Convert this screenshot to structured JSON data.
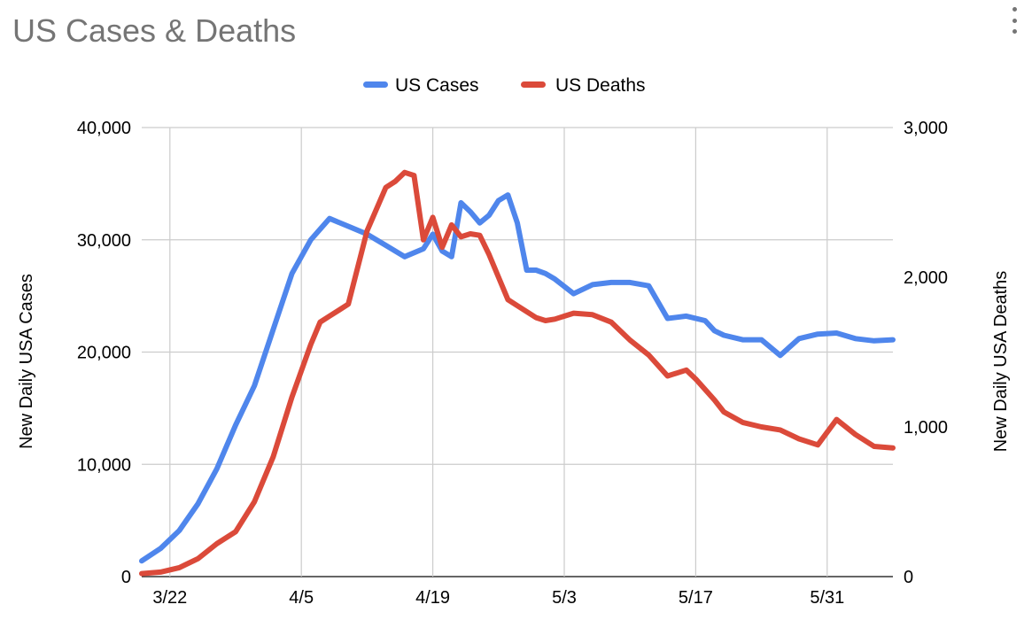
{
  "title": "US Cases & Deaths",
  "menu_icon": "more-vert-icon",
  "colors": {
    "cases": "#4f86ec",
    "deaths": "#db4a3a",
    "grid": "#cccccc",
    "axis_text": "#000000",
    "title": "#757575"
  },
  "chart_data": {
    "type": "line",
    "title": "US Cases & Deaths",
    "legend_position": "top",
    "grid": true,
    "x_label": "",
    "x_ticks": [
      "3/22",
      "4/5",
      "4/19",
      "5/3",
      "5/17",
      "5/31"
    ],
    "x_tick_days": [
      3,
      17,
      31,
      45,
      59,
      73
    ],
    "x_range_days": [
      0,
      80
    ],
    "y_left": {
      "label": "New Daily USA Cases",
      "ticks": [
        "0",
        "10,000",
        "20,000",
        "30,000",
        "40,000"
      ],
      "range": [
        0,
        40000
      ]
    },
    "y_right": {
      "label": "New Daily USA Deaths",
      "ticks": [
        "0",
        "1,000",
        "2,000",
        "3,000"
      ],
      "range": [
        0,
        3000
      ]
    },
    "series": [
      {
        "name": "US Cases",
        "axis": "left",
        "x_days": [
          0,
          2,
          4,
          6,
          8,
          10,
          12,
          14,
          16,
          18,
          20,
          22,
          24,
          26,
          28,
          30,
          31,
          32,
          33,
          34,
          35,
          36,
          37,
          38,
          39,
          40,
          41,
          42,
          43,
          44,
          46,
          48,
          50,
          52,
          54,
          56,
          58,
          60,
          61,
          62,
          64,
          66,
          68,
          70,
          72,
          74,
          76,
          78,
          80
        ],
        "values": [
          1400,
          2500,
          4100,
          6500,
          9600,
          13500,
          17000,
          22000,
          27000,
          30000,
          31900,
          31200,
          30500,
          29500,
          28500,
          29200,
          30500,
          29000,
          28500,
          33300,
          32500,
          31500,
          32200,
          33500,
          34000,
          31500,
          27300,
          27300,
          27000,
          26500,
          25200,
          26000,
          26200,
          26200,
          25900,
          23000,
          23200,
          22800,
          21900,
          21500,
          21100,
          21100,
          19700,
          21200,
          21600,
          21700,
          21200,
          21000,
          21100
        ]
      },
      {
        "name": "US Deaths",
        "axis": "right",
        "x_days": [
          0,
          2,
          4,
          6,
          8,
          10,
          12,
          14,
          16,
          18,
          19,
          20,
          21,
          22,
          24,
          26,
          27,
          28,
          29,
          30,
          31,
          32,
          33,
          34,
          35,
          36,
          37,
          38,
          39,
          40,
          41,
          42,
          43,
          44,
          46,
          48,
          50,
          52,
          54,
          56,
          58,
          59,
          60,
          61,
          62,
          64,
          66,
          68,
          70,
          72,
          74,
          76,
          78,
          80
        ],
        "values": [
          20,
          30,
          60,
          120,
          220,
          300,
          500,
          800,
          1200,
          1550,
          1700,
          1740,
          1780,
          1820,
          2310,
          2600,
          2640,
          2700,
          2680,
          2250,
          2400,
          2200,
          2350,
          2270,
          2290,
          2280,
          2150,
          2000,
          1850,
          1810,
          1770,
          1730,
          1710,
          1720,
          1760,
          1750,
          1700,
          1580,
          1480,
          1340,
          1380,
          1320,
          1250,
          1180,
          1100,
          1030,
          1000,
          980,
          920,
          880,
          1050,
          950,
          870,
          860
        ]
      }
    ]
  }
}
